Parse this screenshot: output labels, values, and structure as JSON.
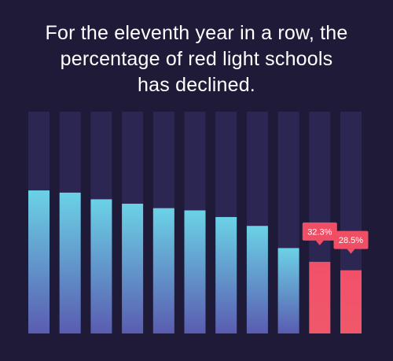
{
  "title_lines": [
    "For the eleventh year in a row, the",
    "percentage of red light schools",
    "has declined."
  ],
  "colors": {
    "background": "#1e1a38",
    "track": "#2c2752",
    "bar_top": "#6bd2e6",
    "bar_bottom": "#5a5cb0",
    "highlight_top": "#f2506a",
    "highlight_bottom": "#f0586a",
    "label_bg": "#f04e64",
    "label_text": "#ffffff"
  },
  "chart_data": {
    "type": "bar",
    "title": "For the eleventh year in a row, the percentage of red light schools has declined.",
    "xlabel": "",
    "ylabel": "",
    "ylim": [
      0,
      100
    ],
    "grid": false,
    "legend": "none",
    "values": [
      64.5,
      63.5,
      60.5,
      58.5,
      56.5,
      55.5,
      52.5,
      48.5,
      38.5,
      32.3,
      28.5
    ],
    "highlighted": [
      false,
      false,
      false,
      false,
      false,
      false,
      false,
      false,
      false,
      true,
      true
    ],
    "data_labels": [
      "",
      "",
      "",
      "",
      "",
      "",
      "",
      "",
      "",
      "32.3%",
      "28.5%"
    ]
  }
}
